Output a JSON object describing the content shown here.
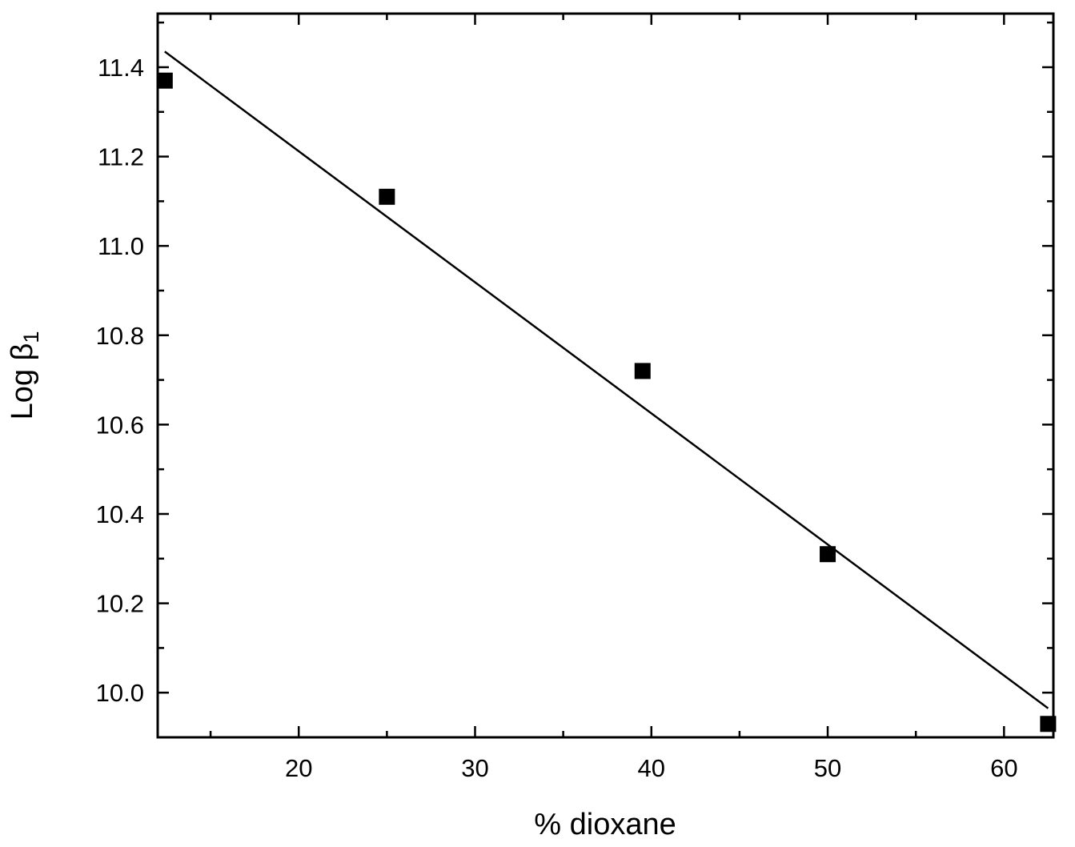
{
  "chart_data": {
    "type": "scatter",
    "title": "",
    "xlabel": "% dioxane",
    "ylabel": {
      "main": "Log β",
      "subscript": "1"
    },
    "xlim": [
      12,
      62.8
    ],
    "ylim": [
      9.9,
      11.52
    ],
    "x_ticks": [
      20,
      30,
      40,
      50,
      60
    ],
    "x_minor_ticks": [
      15,
      25,
      35,
      45,
      55
    ],
    "y_ticks": [
      10.0,
      10.2,
      10.4,
      10.6,
      10.8,
      11.0,
      11.2,
      11.4
    ],
    "y_tick_labels": [
      "10.0",
      "10.2",
      "10.4",
      "10.6",
      "10.8",
      "11.0",
      "11.2",
      "11.4"
    ],
    "y_minor_ticks": [
      9.9,
      10.1,
      10.3,
      10.5,
      10.7,
      10.9,
      11.1,
      11.3,
      11.5
    ],
    "grid": false,
    "series": [
      {
        "marker": "square",
        "color": "#000000",
        "x": [
          12.4,
          25,
          39.5,
          50,
          62.5
        ],
        "y": [
          11.37,
          11.11,
          10.72,
          10.31,
          9.93
        ]
      }
    ],
    "fit_line": {
      "color": "#000000",
      "x": [
        12.4,
        62.5
      ],
      "y": [
        11.435,
        9.965
      ]
    }
  }
}
